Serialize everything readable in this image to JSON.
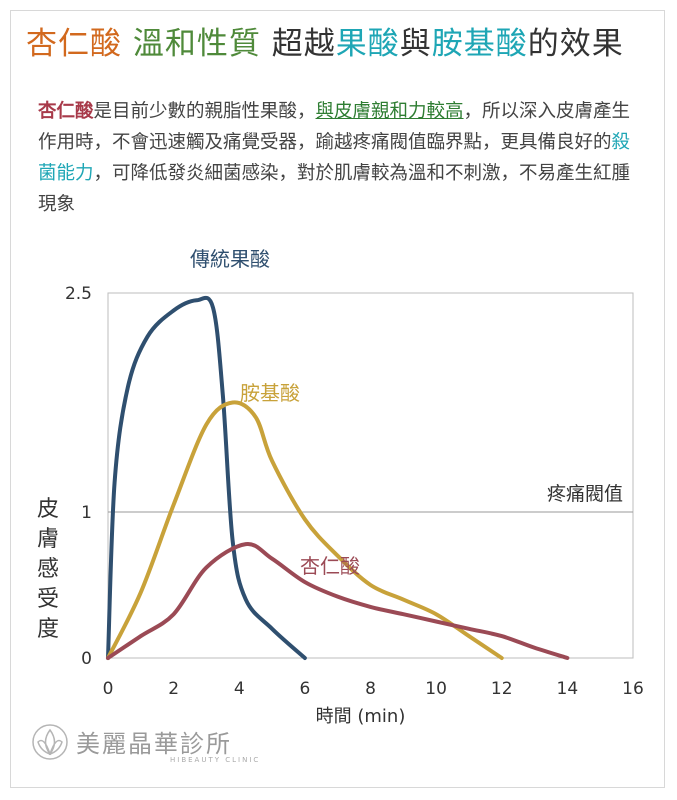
{
  "title": {
    "part1": "杏仁酸",
    "part2": "溫和性質",
    "part3": "超越",
    "part4": "果酸",
    "part5": "與",
    "part6": "胺基酸",
    "part7": "的效果"
  },
  "description": {
    "s1": "杏仁酸",
    "s2": "是目前少數的親脂性果酸，",
    "s3": "與皮膚親和力較高",
    "s4": "，所以深入皮膚產生作用時，不會迅速觸及痛覺受器，踰越疼痛閥值臨界點，更具備良好的",
    "s5": "殺菌能力",
    "s6": "，可降低發炎細菌感染，對於肌膚較為溫和不刺激，不易產生紅腫現象"
  },
  "logo": {
    "name": "美麗晶華診所",
    "sub": "HIBEAUTY CLINIC"
  },
  "chart_data": {
    "type": "line",
    "xlabel": "時間 (min)",
    "ylabel": "皮膚感受度",
    "xlim": [
      0,
      16
    ],
    "ylim": [
      0,
      2.5
    ],
    "xticks": [
      "0",
      "2",
      "4",
      "6",
      "8",
      "10",
      "12",
      "14",
      "16"
    ],
    "yticks": [
      "0",
      "1",
      "2.5"
    ],
    "threshold": {
      "value": 1,
      "label": "疼痛閥值"
    },
    "series": [
      {
        "name": "傳統果酸",
        "color": "#2f4f6f",
        "points": [
          [
            0,
            0
          ],
          [
            0.2,
            1.2
          ],
          [
            0.6,
            1.85
          ],
          [
            1.2,
            2.2
          ],
          [
            2,
            2.38
          ],
          [
            2.7,
            2.45
          ],
          [
            3.2,
            2.4
          ],
          [
            3.5,
            1.8
          ],
          [
            3.8,
            0.8
          ],
          [
            4.2,
            0.4
          ],
          [
            5,
            0.2
          ],
          [
            6,
            0
          ]
        ]
      },
      {
        "name": "胺基酸",
        "color": "#c8a23a",
        "points": [
          [
            0,
            0
          ],
          [
            1,
            0.45
          ],
          [
            2,
            1.05
          ],
          [
            3,
            1.6
          ],
          [
            3.8,
            1.75
          ],
          [
            4.5,
            1.65
          ],
          [
            5,
            1.35
          ],
          [
            6,
            0.95
          ],
          [
            7,
            0.7
          ],
          [
            8,
            0.5
          ],
          [
            9,
            0.4
          ],
          [
            10,
            0.3
          ],
          [
            11,
            0.15
          ],
          [
            12,
            0
          ]
        ]
      },
      {
        "name": "杏仁酸",
        "color": "#9b4a55",
        "points": [
          [
            0,
            0
          ],
          [
            1,
            0.15
          ],
          [
            2,
            0.3
          ],
          [
            3,
            0.62
          ],
          [
            4.2,
            0.78
          ],
          [
            5,
            0.68
          ],
          [
            6,
            0.52
          ],
          [
            7,
            0.42
          ],
          [
            8,
            0.35
          ],
          [
            9,
            0.3
          ],
          [
            10,
            0.25
          ],
          [
            11,
            0.2
          ],
          [
            12,
            0.15
          ],
          [
            13,
            0.07
          ],
          [
            14,
            0
          ]
        ]
      }
    ]
  }
}
